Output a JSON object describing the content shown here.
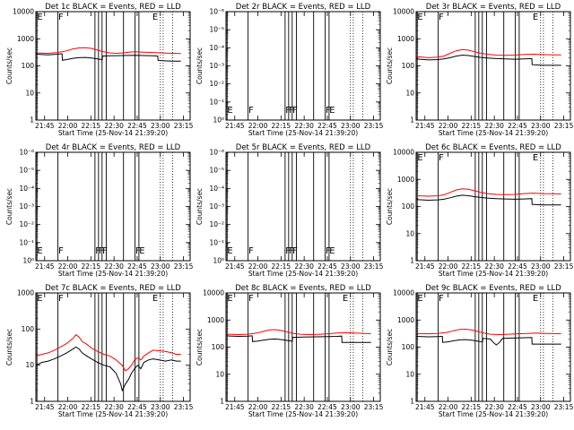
{
  "figure": {
    "x_ticks": [
      "21:45",
      "22:00",
      "22:15",
      "22:30",
      "22:45",
      "23:00",
      "23:15"
    ],
    "xlabel": "Start Time (25-Nov-14 21:39:20)",
    "ylabel": "Counts/sec",
    "colors": {
      "events": "#000000",
      "lld": "#ff0000",
      "axes": "#000000"
    }
  },
  "chart_data": [
    {
      "type": "line",
      "det": "1c",
      "title": "Det 1c BLACK = Events, RED = LLD",
      "scale": "log",
      "ylim": [
        1,
        10000
      ],
      "y_ticks": [
        "1",
        "10",
        "100",
        "1000",
        "10000"
      ],
      "lld": [
        [
          0,
          300
        ],
        [
          8,
          290
        ],
        [
          14,
          310
        ],
        [
          20,
          360
        ],
        [
          24,
          420
        ],
        [
          28,
          460
        ],
        [
          32,
          470
        ],
        [
          36,
          440
        ],
        [
          40,
          380
        ],
        [
          44,
          330
        ],
        [
          48,
          300
        ],
        [
          52,
          290
        ],
        [
          56,
          300
        ],
        [
          60,
          320
        ],
        [
          64,
          330
        ],
        [
          70,
          320
        ],
        [
          76,
          310
        ],
        [
          82,
          300
        ],
        [
          88,
          290
        ],
        [
          94,
          285
        ]
      ],
      "events": [
        [
          0,
          270
        ],
        [
          8,
          255
        ],
        [
          14,
          270
        ],
        [
          17,
          280
        ],
        [
          17.2,
          160
        ],
        [
          20,
          170
        ],
        [
          24,
          190
        ],
        [
          28,
          200
        ],
        [
          32,
          205
        ],
        [
          36,
          195
        ],
        [
          40,
          180
        ],
        [
          43,
          170
        ],
        [
          43.2,
          230
        ],
        [
          48,
          235
        ],
        [
          56,
          240
        ],
        [
          64,
          245
        ],
        [
          70,
          240
        ],
        [
          76,
          235
        ],
        [
          79,
          230
        ],
        [
          79.2,
          160
        ],
        [
          82,
          155
        ],
        [
          88,
          150
        ],
        [
          94,
          150
        ]
      ],
      "flags": [
        {
          "t": 0.8,
          "label": "E"
        },
        {
          "t": 14.5,
          "label": "F"
        },
        {
          "t": 75.5,
          "label": "E"
        }
      ]
    },
    {
      "type": "line",
      "det": "2r",
      "title": "Det 2r BLACK = Events, RED = LLD",
      "scale": "log",
      "ylim": [
        1e-06,
        1
      ],
      "y_ticks": [
        "10⁰",
        "10⁻¹",
        "10⁻²",
        "10⁻³",
        "10⁻⁴",
        "10⁻⁵",
        "10⁻⁶"
      ],
      "lld": [],
      "events": [],
      "flags": [
        {
          "t": 0.8,
          "label": "E"
        },
        {
          "t": 14.5,
          "label": "F"
        },
        {
          "t": 38.5,
          "label": "F"
        },
        {
          "t": 40.8,
          "label": "F"
        },
        {
          "t": 43.1,
          "label": "F"
        },
        {
          "t": 64.5,
          "label": "F"
        },
        {
          "t": 67,
          "label": "E"
        }
      ]
    },
    {
      "type": "line",
      "det": "3r",
      "title": "Det 3r BLACK = Events, RED = LLD",
      "scale": "log",
      "ylim": [
        1,
        10000
      ],
      "y_ticks": [
        "1",
        "10",
        "100",
        "1000",
        "10000"
      ],
      "lld": [
        [
          0,
          220
        ],
        [
          8,
          200
        ],
        [
          14,
          210
        ],
        [
          18,
          230
        ],
        [
          22,
          290
        ],
        [
          26,
          360
        ],
        [
          30,
          400
        ],
        [
          34,
          380
        ],
        [
          38,
          330
        ],
        [
          42,
          290
        ],
        [
          46,
          270
        ],
        [
          52,
          250
        ],
        [
          58,
          245
        ],
        [
          64,
          250
        ],
        [
          70,
          265
        ],
        [
          76,
          270
        ],
        [
          82,
          260
        ],
        [
          88,
          255
        ],
        [
          94,
          255
        ]
      ],
      "events": [
        [
          0,
          180
        ],
        [
          8,
          165
        ],
        [
          14,
          170
        ],
        [
          18,
          180
        ],
        [
          22,
          200
        ],
        [
          26,
          230
        ],
        [
          30,
          250
        ],
        [
          34,
          240
        ],
        [
          38,
          220
        ],
        [
          42,
          205
        ],
        [
          46,
          195
        ],
        [
          52,
          185
        ],
        [
          58,
          180
        ],
        [
          64,
          175
        ],
        [
          70,
          180
        ],
        [
          75,
          185
        ],
        [
          75.2,
          110
        ],
        [
          82,
          105
        ],
        [
          88,
          105
        ],
        [
          94,
          105
        ]
      ],
      "flags": [
        {
          "t": 0.8,
          "label": "E"
        },
        {
          "t": 14.5,
          "label": "F"
        },
        {
          "t": 75.5,
          "label": "E"
        }
      ]
    },
    {
      "type": "line",
      "det": "4r",
      "title": "Det 4r BLACK = Events, RED = LLD",
      "scale": "log",
      "ylim": [
        1e-06,
        1
      ],
      "y_ticks": [
        "10⁰",
        "10⁻¹",
        "10⁻²",
        "10⁻³",
        "10⁻⁴",
        "10⁻⁵",
        "10⁻⁶"
      ],
      "lld": [],
      "events": [],
      "flags": [
        {
          "t": 0.8,
          "label": "E"
        },
        {
          "t": 14.5,
          "label": "F"
        },
        {
          "t": 38.5,
          "label": "F"
        },
        {
          "t": 40.8,
          "label": "F"
        },
        {
          "t": 43.1,
          "label": "F"
        },
        {
          "t": 64.5,
          "label": "F"
        },
        {
          "t": 67,
          "label": "E"
        }
      ]
    },
    {
      "type": "line",
      "det": "5r",
      "title": "Det 5r BLACK = Events, RED = LLD",
      "scale": "log",
      "ylim": [
        1e-06,
        1
      ],
      "y_ticks": [
        "10⁰",
        "10⁻¹",
        "10⁻²",
        "10⁻³",
        "10⁻⁴",
        "10⁻⁵",
        "10⁻⁶"
      ],
      "lld": [],
      "events": [],
      "flags": [
        {
          "t": 0.8,
          "label": "E"
        },
        {
          "t": 14.5,
          "label": "F"
        },
        {
          "t": 38.5,
          "label": "F"
        },
        {
          "t": 40.8,
          "label": "F"
        },
        {
          "t": 43.1,
          "label": "F"
        },
        {
          "t": 64.5,
          "label": "F"
        },
        {
          "t": 67,
          "label": "E"
        }
      ]
    },
    {
      "type": "line",
      "det": "6c",
      "title": "Det 6c BLACK = Events, RED = LLD",
      "scale": "log",
      "ylim": [
        1,
        10000
      ],
      "y_ticks": [
        "1",
        "10",
        "100",
        "1000",
        "10000"
      ],
      "lld": [
        [
          0,
          250
        ],
        [
          8,
          240
        ],
        [
          14,
          250
        ],
        [
          18,
          270
        ],
        [
          22,
          330
        ],
        [
          26,
          410
        ],
        [
          30,
          450
        ],
        [
          34,
          430
        ],
        [
          38,
          380
        ],
        [
          42,
          330
        ],
        [
          46,
          300
        ],
        [
          52,
          280
        ],
        [
          58,
          275
        ],
        [
          64,
          280
        ],
        [
          70,
          300
        ],
        [
          76,
          310
        ],
        [
          82,
          300
        ],
        [
          88,
          295
        ],
        [
          94,
          290
        ]
      ],
      "events": [
        [
          0,
          180
        ],
        [
          8,
          170
        ],
        [
          14,
          175
        ],
        [
          18,
          185
        ],
        [
          22,
          210
        ],
        [
          26,
          240
        ],
        [
          30,
          260
        ],
        [
          34,
          250
        ],
        [
          38,
          230
        ],
        [
          42,
          215
        ],
        [
          46,
          205
        ],
        [
          52,
          195
        ],
        [
          58,
          190
        ],
        [
          64,
          185
        ],
        [
          70,
          190
        ],
        [
          75,
          195
        ],
        [
          75.2,
          120
        ],
        [
          82,
          115
        ],
        [
          88,
          115
        ],
        [
          94,
          115
        ]
      ],
      "flags": [
        {
          "t": 0.8,
          "label": "E"
        },
        {
          "t": 14.5,
          "label": "F"
        },
        {
          "t": 75.5,
          "label": "E"
        }
      ]
    },
    {
      "type": "line",
      "det": "7c",
      "title": "Det 7c BLACK = Events, RED = LLD",
      "scale": "log",
      "ylim": [
        1,
        1000
      ],
      "y_ticks": [
        "1",
        "10",
        "100",
        "1000"
      ],
      "lld": [
        [
          0,
          18
        ],
        [
          4,
          20
        ],
        [
          8,
          22
        ],
        [
          12,
          26
        ],
        [
          16,
          32
        ],
        [
          20,
          40
        ],
        [
          24,
          55
        ],
        [
          26,
          70
        ],
        [
          28,
          60
        ],
        [
          30,
          45
        ],
        [
          33,
          38
        ],
        [
          36,
          30
        ],
        [
          40,
          24
        ],
        [
          44,
          20
        ],
        [
          48,
          18
        ],
        [
          52,
          14
        ],
        [
          56,
          10
        ],
        [
          58,
          7
        ],
        [
          60,
          8
        ],
        [
          62,
          10
        ],
        [
          64,
          14
        ],
        [
          66,
          16
        ],
        [
          68,
          14
        ],
        [
          70,
          18
        ],
        [
          73,
          22
        ],
        [
          76,
          26
        ],
        [
          80,
          25
        ],
        [
          84,
          24
        ],
        [
          88,
          22
        ],
        [
          91,
          20
        ],
        [
          94,
          20
        ]
      ],
      "events": [
        [
          0,
          10
        ],
        [
          4,
          12
        ],
        [
          8,
          13
        ],
        [
          12,
          15
        ],
        [
          16,
          18
        ],
        [
          20,
          22
        ],
        [
          24,
          28
        ],
        [
          26,
          32
        ],
        [
          28,
          28
        ],
        [
          30,
          22
        ],
        [
          33,
          18
        ],
        [
          36,
          15
        ],
        [
          40,
          12
        ],
        [
          44,
          10
        ],
        [
          48,
          9
        ],
        [
          52,
          6
        ],
        [
          55,
          3
        ],
        [
          56,
          2
        ],
        [
          58,
          3
        ],
        [
          60,
          4
        ],
        [
          62,
          6
        ],
        [
          64,
          8
        ],
        [
          66,
          10
        ],
        [
          68,
          8
        ],
        [
          70,
          12
        ],
        [
          73,
          14
        ],
        [
          76,
          15
        ],
        [
          80,
          14
        ],
        [
          84,
          13
        ],
        [
          88,
          14
        ],
        [
          91,
          13
        ],
        [
          94,
          13
        ]
      ],
      "flags": [
        {
          "t": 0.8,
          "label": "E"
        },
        {
          "t": 14.5,
          "label": "F"
        },
        {
          "t": 75.5,
          "label": "E"
        }
      ]
    },
    {
      "type": "line",
      "det": "8c",
      "title": "Det 8c BLACK = Events, RED = LLD",
      "scale": "log",
      "ylim": [
        1,
        10000
      ],
      "y_ticks": [
        "1",
        "10",
        "100",
        "1000",
        "10000"
      ],
      "lld": [
        [
          0,
          300
        ],
        [
          8,
          290
        ],
        [
          14,
          300
        ],
        [
          20,
          330
        ],
        [
          24,
          380
        ],
        [
          28,
          430
        ],
        [
          32,
          440
        ],
        [
          36,
          410
        ],
        [
          40,
          360
        ],
        [
          44,
          320
        ],
        [
          48,
          300
        ],
        [
          54,
          290
        ],
        [
          60,
          295
        ],
        [
          66,
          310
        ],
        [
          72,
          330
        ],
        [
          78,
          340
        ],
        [
          84,
          330
        ],
        [
          90,
          320
        ],
        [
          94,
          315
        ]
      ],
      "events": [
        [
          0,
          260
        ],
        [
          8,
          250
        ],
        [
          14,
          255
        ],
        [
          17,
          260
        ],
        [
          17.2,
          160
        ],
        [
          20,
          165
        ],
        [
          24,
          180
        ],
        [
          28,
          195
        ],
        [
          32,
          200
        ],
        [
          36,
          190
        ],
        [
          40,
          175
        ],
        [
          43,
          165
        ],
        [
          43.2,
          230
        ],
        [
          50,
          235
        ],
        [
          58,
          240
        ],
        [
          66,
          245
        ],
        [
          72,
          250
        ],
        [
          75,
          255
        ],
        [
          75.2,
          150
        ],
        [
          82,
          150
        ],
        [
          88,
          150
        ],
        [
          94,
          150
        ]
      ],
      "flags": [
        {
          "t": 0.8,
          "label": "E"
        },
        {
          "t": 14.5,
          "label": "F"
        },
        {
          "t": 75.5,
          "label": "E"
        }
      ]
    },
    {
      "type": "line",
      "det": "9c",
      "title": "Det 9c BLACK = Events, RED = LLD",
      "scale": "log",
      "ylim": [
        1,
        10000
      ],
      "y_ticks": [
        "1",
        "10",
        "100",
        "1000",
        "10000"
      ],
      "lld": [
        [
          0,
          320
        ],
        [
          8,
          310
        ],
        [
          14,
          320
        ],
        [
          20,
          350
        ],
        [
          24,
          400
        ],
        [
          28,
          450
        ],
        [
          32,
          460
        ],
        [
          36,
          430
        ],
        [
          40,
          380
        ],
        [
          44,
          330
        ],
        [
          48,
          300
        ],
        [
          54,
          290
        ],
        [
          60,
          300
        ],
        [
          66,
          310
        ],
        [
          72,
          320
        ],
        [
          78,
          330
        ],
        [
          84,
          320
        ],
        [
          90,
          315
        ],
        [
          94,
          310
        ]
      ],
      "events": [
        [
          0,
          250
        ],
        [
          8,
          240
        ],
        [
          14,
          245
        ],
        [
          17,
          250
        ],
        [
          17.2,
          150
        ],
        [
          20,
          155
        ],
        [
          24,
          170
        ],
        [
          28,
          185
        ],
        [
          32,
          190
        ],
        [
          36,
          180
        ],
        [
          40,
          165
        ],
        [
          43,
          155
        ],
        [
          43.2,
          210
        ],
        [
          48,
          200
        ],
        [
          50,
          150
        ],
        [
          52,
          120
        ],
        [
          54,
          150
        ],
        [
          56,
          210
        ],
        [
          62,
          215
        ],
        [
          68,
          220
        ],
        [
          75,
          225
        ],
        [
          75.2,
          130
        ],
        [
          82,
          130
        ],
        [
          88,
          130
        ],
        [
          94,
          130
        ]
      ],
      "flags": [
        {
          "t": 0.8,
          "label": "E"
        },
        {
          "t": 14.5,
          "label": "F"
        },
        {
          "t": 75.5,
          "label": "E"
        }
      ]
    }
  ]
}
